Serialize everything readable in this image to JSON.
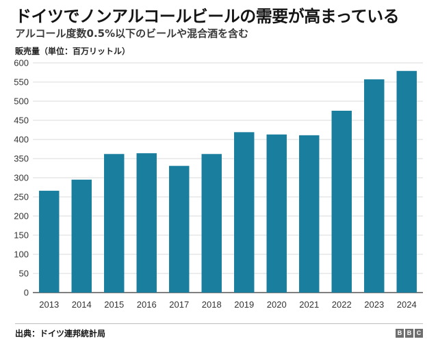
{
  "header": {
    "title": "ドイツでノンアルコールビールの需要が高まっている",
    "subtitle": "アルコール度数0.5%以下のビールや混合酒を含む",
    "unit_label": "販売量（単位：百万リットル）"
  },
  "footer": {
    "source": "出典：ドイツ連邦統計局",
    "logo_letters": [
      "B",
      "B",
      "C"
    ]
  },
  "colors": {
    "bar": "#1a7f9f",
    "grid": "#d9d9d9",
    "axis": "#333333"
  },
  "chart_data": {
    "type": "bar",
    "title": "ドイツでノンアルコールビールの需要が高まっている",
    "subtitle": "アルコール度数0.5%以下のビールや混合酒を含む",
    "xlabel": "",
    "ylabel": "販売量（単位：百万リットル）",
    "categories": [
      "2013",
      "2014",
      "2015",
      "2016",
      "2017",
      "2018",
      "2019",
      "2020",
      "2021",
      "2022",
      "2023",
      "2024"
    ],
    "values": [
      266,
      295,
      362,
      364,
      331,
      362,
      419,
      413,
      411,
      475,
      557,
      579
    ],
    "ylim": [
      0,
      600
    ],
    "yticks": [
      0,
      50,
      100,
      150,
      200,
      250,
      300,
      350,
      400,
      450,
      500,
      550,
      600
    ],
    "grid": true,
    "legend": "none"
  }
}
